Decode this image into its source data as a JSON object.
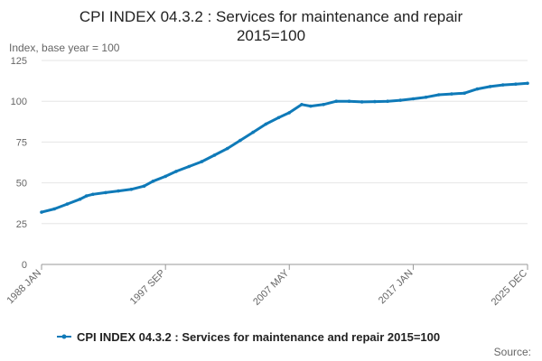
{
  "chart_data": {
    "type": "line",
    "title_lines": [
      "CPI INDEX 04.3.2 : Services for maintenance and repair",
      "2015=100"
    ],
    "unit_label": "Index, base year = 100",
    "ylim": [
      0,
      125
    ],
    "y_ticks": [
      0,
      25,
      50,
      75,
      100,
      125
    ],
    "x_ticks": [
      {
        "label": "1988 JAN",
        "year": 1988.0
      },
      {
        "label": "1997 SEP",
        "year": 1997.67
      },
      {
        "label": "2007 MAY",
        "year": 2007.33
      },
      {
        "label": "2017 JAN",
        "year": 2017.0
      },
      {
        "label": "2025 DEC",
        "year": 2025.92
      }
    ],
    "x_range": [
      1988.0,
      2025.92
    ],
    "grid": "horizontal",
    "legend_placement": "bottom",
    "source_label": "Source:",
    "series": [
      {
        "name": "CPI INDEX 04.3.2 : Services for maintenance and repair 2015=100",
        "color": "#0f7ab8",
        "points": [
          [
            1988.0,
            32
          ],
          [
            1989.0,
            34
          ],
          [
            1990.0,
            37
          ],
          [
            1991.0,
            40
          ],
          [
            1991.5,
            42
          ],
          [
            1992.0,
            43
          ],
          [
            1993.0,
            44
          ],
          [
            1994.0,
            45
          ],
          [
            1995.0,
            46
          ],
          [
            1996.0,
            48
          ],
          [
            1996.7,
            51
          ],
          [
            1997.67,
            54
          ],
          [
            1998.5,
            57
          ],
          [
            1999.5,
            60
          ],
          [
            2000.5,
            63
          ],
          [
            2001.5,
            67
          ],
          [
            2002.5,
            71
          ],
          [
            2003.5,
            76
          ],
          [
            2004.5,
            81
          ],
          [
            2005.5,
            86
          ],
          [
            2006.5,
            90
          ],
          [
            2007.33,
            93
          ],
          [
            2008.3,
            98
          ],
          [
            2009.0,
            97
          ],
          [
            2010.0,
            98
          ],
          [
            2011.0,
            100
          ],
          [
            2012.0,
            100
          ],
          [
            2013.0,
            99.6
          ],
          [
            2014.0,
            99.8
          ],
          [
            2015.0,
            100
          ],
          [
            2016.0,
            100.6
          ],
          [
            2017.0,
            101.5
          ],
          [
            2018.0,
            102.5
          ],
          [
            2019.0,
            104
          ],
          [
            2020.0,
            104.5
          ],
          [
            2021.0,
            105
          ],
          [
            2022.0,
            107.5
          ],
          [
            2023.0,
            109
          ],
          [
            2024.0,
            110
          ],
          [
            2025.0,
            110.5
          ],
          [
            2025.92,
            111
          ]
        ]
      }
    ]
  }
}
